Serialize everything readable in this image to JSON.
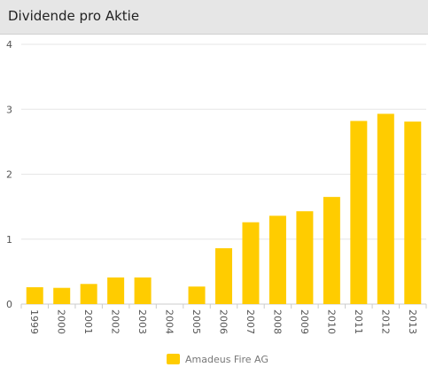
{
  "header": {
    "title": "Dividende pro Aktie"
  },
  "colors": {
    "bar": "#ffcc00",
    "grid": "#e6e6e6",
    "axis": "#cccccc"
  },
  "chart_data": {
    "type": "bar",
    "title": "Dividende pro Aktie",
    "categories": [
      "1999",
      "2000",
      "2001",
      "2002",
      "2003",
      "2004",
      "2005",
      "2006",
      "2007",
      "2008",
      "2009",
      "2010",
      "2011",
      "2012",
      "2013"
    ],
    "series": [
      {
        "name": "Amadeus Fire AG",
        "values": [
          0.26,
          0.25,
          0.31,
          0.41,
          0.41,
          0,
          0.27,
          0.86,
          1.26,
          1.36,
          1.43,
          1.65,
          2.82,
          2.93,
          2.81
        ]
      }
    ],
    "ylim": [
      0,
      4
    ],
    "yticks": [
      "0",
      "1",
      "2",
      "3",
      "4"
    ],
    "grid": true,
    "legend_position": "bottom-center"
  }
}
